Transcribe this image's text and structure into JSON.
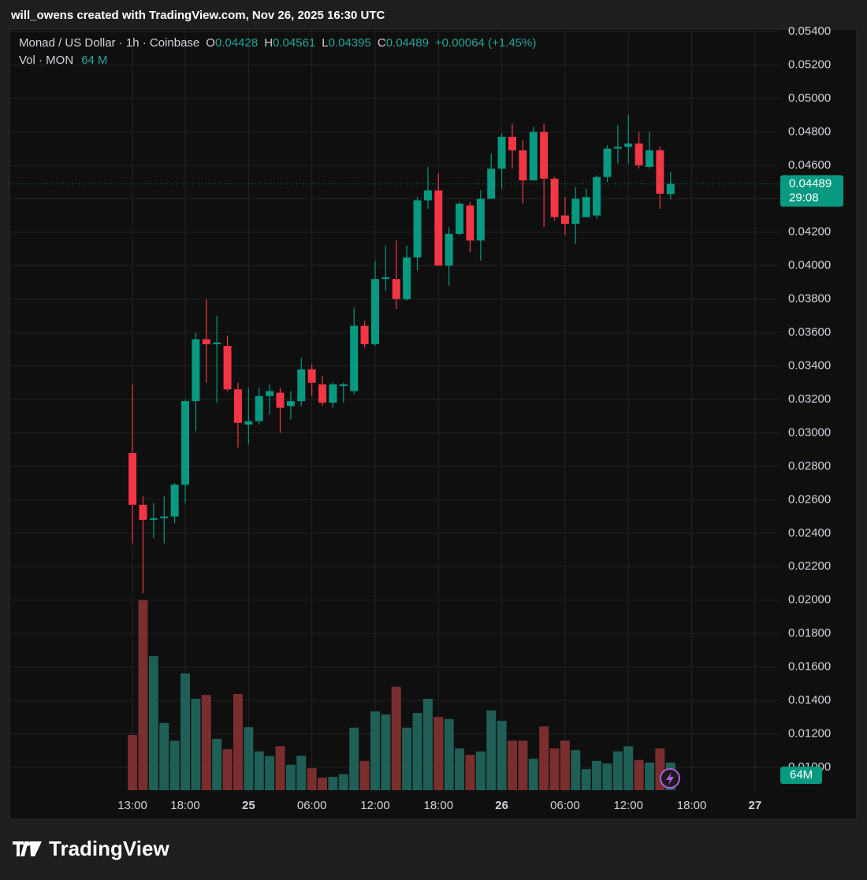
{
  "header": {
    "credit": "will_owens created with TradingView.com, Nov 26, 2025 16:30 UTC",
    "symbol": "Monad / US Dollar · 1h · Coinbase",
    "o_label": "O",
    "h_label": "H",
    "l_label": "L",
    "c_label": "C",
    "change": "+0.00064 (+1.45%)",
    "volume_title": "Vol · MON",
    "volume_header": "64 M",
    "countdown": "29:08",
    "volume_badge": "64M"
  },
  "footer": {
    "brand": "TradingView"
  },
  "chart_data": {
    "type": "candlestick",
    "up_color": "#089981",
    "down_color": "#f23645",
    "volume_up_color": "#1f5f56",
    "volume_down_color": "#7a2e2e",
    "grid": true,
    "x": [
      0,
      1,
      2,
      3,
      4,
      5,
      6,
      7,
      8,
      9,
      10,
      11,
      12,
      13,
      14,
      15,
      16,
      17,
      18,
      19,
      20,
      21,
      22,
      23,
      24,
      25,
      26,
      27,
      28,
      29,
      30,
      31,
      32,
      33,
      34,
      35,
      36,
      37,
      38,
      39,
      40,
      41,
      42,
      43,
      44,
      45,
      46,
      47,
      48,
      49,
      50,
      51
    ],
    "open": [
      0.0288,
      0.0257,
      0.0248,
      0.0249,
      0.025,
      0.0269,
      0.0319,
      0.0356,
      0.0353,
      0.0352,
      0.0326,
      0.0305,
      0.0307,
      0.0322,
      0.0324,
      0.0316,
      0.0319,
      0.0338,
      0.0329,
      0.0318,
      0.0328,
      0.0325,
      0.0364,
      0.0353,
      0.0392,
      0.0392,
      0.038,
      0.0405,
      0.0439,
      0.0445,
      0.04,
      0.0419,
      0.0436,
      0.0415,
      0.044,
      0.0458,
      0.0477,
      0.0469,
      0.0451,
      0.048,
      0.0452,
      0.043,
      0.0425,
      0.0429,
      0.043,
      0.0453,
      0.047,
      0.0471,
      0.0473,
      0.0459,
      0.0469,
      0.04428
    ],
    "high": [
      0.0329,
      0.0262,
      0.0258,
      0.0262,
      0.027,
      0.032,
      0.036,
      0.038,
      0.037,
      0.0358,
      0.033,
      0.0327,
      0.0327,
      0.0329,
      0.0327,
      0.0325,
      0.0345,
      0.0341,
      0.0334,
      0.033,
      0.033,
      0.0375,
      0.0367,
      0.0403,
      0.0412,
      0.0415,
      0.0412,
      0.0441,
      0.0459,
      0.0455,
      0.0423,
      0.0438,
      0.0438,
      0.0445,
      0.0467,
      0.0479,
      0.0485,
      0.0475,
      0.0483,
      0.0485,
      0.0453,
      0.0441,
      0.0447,
      0.0446,
      0.0454,
      0.0472,
      0.0484,
      0.049,
      0.048,
      0.048,
      0.0471,
      0.04561
    ],
    "low": [
      0.0234,
      0.0204,
      0.0237,
      0.0234,
      0.0246,
      0.0258,
      0.0301,
      0.033,
      0.0318,
      0.0325,
      0.0291,
      0.0293,
      0.0305,
      0.0311,
      0.03,
      0.0308,
      0.0316,
      0.0322,
      0.0316,
      0.0315,
      0.0318,
      0.0323,
      0.0351,
      0.0352,
      0.0385,
      0.0374,
      0.0379,
      0.0397,
      0.0434,
      0.04,
      0.0388,
      0.0418,
      0.0408,
      0.0403,
      0.044,
      0.0446,
      0.0458,
      0.0437,
      0.0451,
      0.0423,
      0.0427,
      0.0418,
      0.0413,
      0.0429,
      0.0428,
      0.045,
      0.0461,
      0.0461,
      0.0458,
      0.0458,
      0.0434,
      0.04395
    ],
    "close": [
      0.0257,
      0.0248,
      0.0249,
      0.025,
      0.0269,
      0.0319,
      0.0356,
      0.0353,
      0.0354,
      0.0326,
      0.0306,
      0.0307,
      0.0322,
      0.0325,
      0.0315,
      0.0319,
      0.0338,
      0.033,
      0.0318,
      0.0329,
      0.0329,
      0.0364,
      0.0353,
      0.0392,
      0.0393,
      0.038,
      0.0405,
      0.0439,
      0.0445,
      0.04,
      0.0419,
      0.0437,
      0.0415,
      0.044,
      0.0458,
      0.0477,
      0.0469,
      0.0451,
      0.048,
      0.0452,
      0.0429,
      0.0425,
      0.044,
      0.0441,
      0.0453,
      0.047,
      0.0471,
      0.0473,
      0.046,
      0.0469,
      0.0443,
      0.04489
    ],
    "volume": [
      128,
      441,
      311,
      156,
      115,
      271,
      212,
      221,
      119,
      95,
      223,
      146,
      90,
      79,
      102,
      59,
      80,
      51,
      29,
      31,
      37,
      145,
      68,
      183,
      176,
      240,
      145,
      179,
      212,
      170,
      165,
      97,
      82,
      90,
      185,
      161,
      115,
      115,
      73,
      148,
      97,
      115,
      93,
      49,
      68,
      62,
      90,
      102,
      70,
      64,
      97,
      64
    ],
    "xlim": [
      -11.66,
      61.4
    ],
    "xticks": [
      {
        "value": 0,
        "label": "13:00"
      },
      {
        "value": 5,
        "label": "18:00"
      },
      {
        "value": 11,
        "label": "25"
      },
      {
        "value": 17,
        "label": "06:00"
      },
      {
        "value": 23,
        "label": "12:00"
      },
      {
        "value": 29,
        "label": "18:00"
      },
      {
        "value": 35,
        "label": "26"
      },
      {
        "value": 41,
        "label": "06:00"
      },
      {
        "value": 47,
        "label": "12:00"
      },
      {
        "value": 53,
        "label": "18:00"
      },
      {
        "value": 59,
        "label": "27"
      }
    ],
    "ylim": [
      0.01,
      0.054
    ],
    "yticks": [
      {
        "value": 0.054,
        "label": "0.05400"
      },
      {
        "value": 0.052,
        "label": "0.05200"
      },
      {
        "value": 0.05,
        "label": "0.05000"
      },
      {
        "value": 0.048,
        "label": "0.04800"
      },
      {
        "value": 0.046,
        "label": "0.04600"
      },
      {
        "value": 0.044,
        "label": "0.04400"
      },
      {
        "value": 0.042,
        "label": "0.04200"
      },
      {
        "value": 0.04,
        "label": "0.04000"
      },
      {
        "value": 0.038,
        "label": "0.03800"
      },
      {
        "value": 0.036,
        "label": "0.03600"
      },
      {
        "value": 0.034,
        "label": "0.03400"
      },
      {
        "value": 0.032,
        "label": "0.03200"
      },
      {
        "value": 0.03,
        "label": "0.03000"
      },
      {
        "value": 0.028,
        "label": "0.02800"
      },
      {
        "value": 0.026,
        "label": "0.02600"
      },
      {
        "value": 0.024,
        "label": "0.02400"
      },
      {
        "value": 0.022,
        "label": "0.02200"
      },
      {
        "value": 0.02,
        "label": "0.02000"
      },
      {
        "value": 0.018,
        "label": "0.01800"
      },
      {
        "value": 0.016,
        "label": "0.01600"
      },
      {
        "value": 0.014,
        "label": "0.01400"
      },
      {
        "value": 0.012,
        "label": "0.01200"
      },
      {
        "value": 0.01,
        "label": "0.01000"
      }
    ]
  }
}
